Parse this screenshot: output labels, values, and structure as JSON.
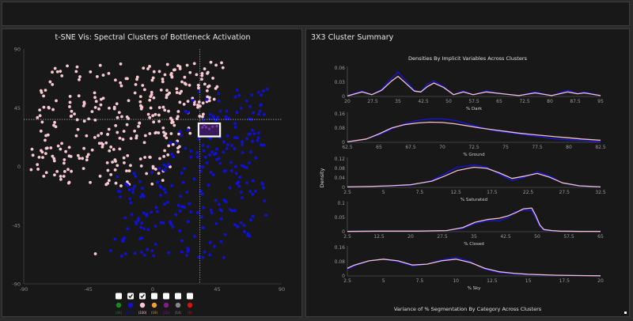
{
  "left_panel": {
    "title": "t-SNE Vis: Spectral Clusters of Bottleneck Activation"
  },
  "right_panel": {
    "title": "3X3 Cluster Summary",
    "densities_title": "Densities By Implicit Variables Across Clusters",
    "y_axis_label": "Density",
    "variance_title": "Variance of % Segmentation By Category Across Clusters"
  },
  "scatter": {
    "x_ticks": [
      "-90",
      "-45",
      "0",
      "45",
      "90"
    ],
    "y_ticks": [
      "90",
      "45",
      "0",
      "-45",
      "-90"
    ],
    "xlim": [
      -90,
      90
    ],
    "ylim": [
      -90,
      90
    ],
    "crosshair": {
      "x": 33,
      "y": 36
    },
    "selection_box": {
      "x0": 32,
      "x1": 47,
      "y0": 23,
      "y1": 33
    },
    "colors": {
      "pink": "#f8c8d4",
      "blue": "#1010d8",
      "selection": "#ffffff"
    }
  },
  "legend": [
    {
      "checked": false,
      "color": "#1a8a1a",
      "count": "(44)",
      "count_color": "#1a8a1a"
    },
    {
      "checked": true,
      "color": "#1010d8",
      "count": "(273)",
      "count_color": "#1010d8"
    },
    {
      "checked": true,
      "color": "#f8c8d4",
      "count": "(330)",
      "count_color": "#f8c8d4"
    },
    {
      "checked": false,
      "color": "#f0a030",
      "count": "(19)",
      "count_color": "#f0a030"
    },
    {
      "checked": false,
      "color": "#8a1a8a",
      "count": "(12)",
      "count_color": "#8a1a8a"
    },
    {
      "checked": false,
      "color": "#888888",
      "count": "(14)",
      "count_color": "#888888"
    },
    {
      "checked": false,
      "color": "#e01010",
      "count": "(6)",
      "count_color": "#e01010"
    }
  ],
  "density_charts": [
    {
      "xlabel": "% Dark",
      "x_ticks": [
        "20",
        "27.5",
        "35",
        "42.5",
        "50",
        "57.5",
        "65",
        "72.5",
        "80",
        "87.5",
        "95"
      ],
      "xlim": [
        17.5,
        95
      ],
      "y_ticks": [
        "0.06",
        "0.03",
        "0"
      ],
      "ymax": 0.06,
      "series": [
        {
          "name": "blue",
          "color": "#1515e0",
          "x": [
            17.5,
            22,
            25,
            28,
            31,
            33,
            35,
            38,
            40,
            42,
            44,
            47,
            50,
            53,
            56,
            60,
            65,
            70,
            75,
            80,
            85,
            88,
            90,
            95
          ],
          "y": [
            0.002,
            0.012,
            0.004,
            0.016,
            0.04,
            0.055,
            0.038,
            0.014,
            0.01,
            0.028,
            0.035,
            0.022,
            0.004,
            0.012,
            0.004,
            0.012,
            0.006,
            0.002,
            0.01,
            0.002,
            0.014,
            0.006,
            0.01,
            0.002
          ]
        },
        {
          "name": "pink",
          "color": "#f5c0d0",
          "x": [
            17.5,
            22,
            25,
            28,
            31,
            33,
            35,
            38,
            40,
            42,
            44,
            47,
            50,
            53,
            56,
            60,
            65,
            70,
            75,
            80,
            85,
            88,
            90,
            95
          ],
          "y": [
            0.001,
            0.01,
            0.004,
            0.014,
            0.034,
            0.045,
            0.032,
            0.012,
            0.01,
            0.022,
            0.03,
            0.02,
            0.004,
            0.01,
            0.004,
            0.01,
            0.006,
            0.002,
            0.008,
            0.002,
            0.01,
            0.006,
            0.008,
            0.002
          ]
        }
      ]
    },
    {
      "xlabel": "% Ground",
      "x_ticks": [
        "62.5",
        "65",
        "67.5",
        "70",
        "72.5",
        "75",
        "77.5",
        "80",
        "82.5"
      ],
      "xlim": [
        62.5,
        82.5
      ],
      "y_ticks": [
        "0.16",
        "0.08",
        "0"
      ],
      "ymax": 0.16,
      "series": [
        {
          "name": "blue",
          "color": "#1515e0",
          "x": [
            62.5,
            64,
            65,
            66,
            67,
            68,
            69,
            70,
            71,
            72,
            73,
            74,
            75,
            76,
            77,
            78,
            79,
            80,
            81,
            82.5
          ],
          "y": [
            0.003,
            0.02,
            0.045,
            0.08,
            0.11,
            0.13,
            0.14,
            0.14,
            0.13,
            0.11,
            0.09,
            0.07,
            0.06,
            0.05,
            0.04,
            0.03,
            0.02,
            0.015,
            0.01,
            0.005
          ]
        },
        {
          "name": "pink",
          "color": "#f5c0d0",
          "x": [
            62.5,
            64,
            65,
            66,
            67,
            68,
            69,
            70,
            71,
            72,
            73,
            74,
            75,
            76,
            77,
            78,
            79,
            80,
            81,
            82.5
          ],
          "y": [
            0.003,
            0.02,
            0.05,
            0.085,
            0.105,
            0.115,
            0.12,
            0.118,
            0.11,
            0.098,
            0.085,
            0.075,
            0.065,
            0.055,
            0.047,
            0.04,
            0.033,
            0.027,
            0.02,
            0.012
          ]
        }
      ]
    },
    {
      "xlabel": "% Saturated",
      "x_ticks": [
        "2.5",
        "5",
        "7.5",
        "12.5",
        "17.5",
        "22.5",
        "27.5",
        "32.5"
      ],
      "xlim": [
        2.5,
        32.5
      ],
      "y_ticks": [
        "0.12",
        "0.08",
        "0.04",
        "0"
      ],
      "ymax": 0.12,
      "series": [
        {
          "name": "blue",
          "color": "#1515e0",
          "x": [
            2.5,
            5,
            7.5,
            10,
            12.5,
            14,
            15.5,
            17.5,
            19,
            20.5,
            22,
            23.5,
            25,
            26.5,
            28,
            30,
            32.5
          ],
          "y": [
            0.002,
            0.004,
            0.006,
            0.01,
            0.03,
            0.06,
            0.09,
            0.1,
            0.09,
            0.06,
            0.03,
            0.045,
            0.07,
            0.05,
            0.02,
            0.006,
            0.002
          ]
        },
        {
          "name": "pink",
          "color": "#f5c0d0",
          "x": [
            2.5,
            5,
            7.5,
            10,
            12.5,
            14,
            15.5,
            17.5,
            19,
            20.5,
            22,
            23.5,
            25,
            26.5,
            28,
            30,
            32.5
          ],
          "y": [
            0.002,
            0.004,
            0.007,
            0.012,
            0.028,
            0.05,
            0.075,
            0.09,
            0.085,
            0.065,
            0.04,
            0.05,
            0.062,
            0.045,
            0.02,
            0.007,
            0.002
          ]
        }
      ]
    },
    {
      "xlabel": "% Closed",
      "x_ticks": [
        "2.5",
        "12.5",
        "20",
        "27.5",
        "35",
        "42.5",
        "50",
        "57.5",
        "65"
      ],
      "xlim": [
        2.5,
        65
      ],
      "y_ticks": [
        "0.1",
        "0.05",
        "0"
      ],
      "ymax": 0.1,
      "series": [
        {
          "name": "blue",
          "color": "#1515e0",
          "x": [
            2.5,
            10,
            20,
            27,
            31,
            34,
            37,
            40,
            42,
            44,
            46,
            48,
            49,
            50,
            51,
            53,
            55,
            60,
            65
          ],
          "y": [
            0.001,
            0.002,
            0.002,
            0.004,
            0.012,
            0.03,
            0.04,
            0.04,
            0.05,
            0.075,
            0.08,
            0.08,
            0.05,
            0.02,
            0.006,
            0.003,
            0.002,
            0.001,
            0.001
          ]
        },
        {
          "name": "pink",
          "color": "#f5c0d0",
          "x": [
            2.5,
            10,
            20,
            27,
            31,
            34,
            37,
            40,
            42,
            44,
            46,
            48,
            49,
            50,
            51,
            53,
            55,
            60,
            65
          ],
          "y": [
            0.001,
            0.002,
            0.002,
            0.004,
            0.015,
            0.035,
            0.045,
            0.05,
            0.058,
            0.07,
            0.085,
            0.088,
            0.06,
            0.025,
            0.008,
            0.004,
            0.002,
            0.001,
            0.001
          ]
        }
      ]
    },
    {
      "xlabel": "% Sky",
      "x_ticks": [
        "2.5",
        "5",
        "7.5",
        "10",
        "12.5",
        "15",
        "17.5",
        "20"
      ],
      "xlim": [
        2.5,
        20
      ],
      "y_ticks": [
        "0.16",
        "0.08",
        "0"
      ],
      "ymax": 0.16,
      "series": [
        {
          "name": "blue",
          "color": "#1515e0",
          "x": [
            2.5,
            3,
            4,
            5,
            6,
            7,
            8,
            9,
            10,
            11,
            12,
            13,
            14,
            15,
            16,
            17,
            18,
            19,
            20
          ],
          "y": [
            0.04,
            0.06,
            0.09,
            0.1,
            0.085,
            0.06,
            0.07,
            0.095,
            0.11,
            0.085,
            0.04,
            0.02,
            0.012,
            0.008,
            0.005,
            0.003,
            0.002,
            0.002,
            0.001
          ]
        },
        {
          "name": "pink",
          "color": "#f5c0d0",
          "x": [
            2.5,
            3,
            4,
            5,
            6,
            7,
            8,
            9,
            10,
            11,
            12,
            13,
            14,
            15,
            16,
            17,
            18,
            19,
            20
          ],
          "y": [
            0.045,
            0.065,
            0.09,
            0.1,
            0.09,
            0.065,
            0.07,
            0.09,
            0.1,
            0.08,
            0.045,
            0.025,
            0.016,
            0.01,
            0.007,
            0.004,
            0.003,
            0.002,
            0.001
          ]
        }
      ]
    }
  ]
}
